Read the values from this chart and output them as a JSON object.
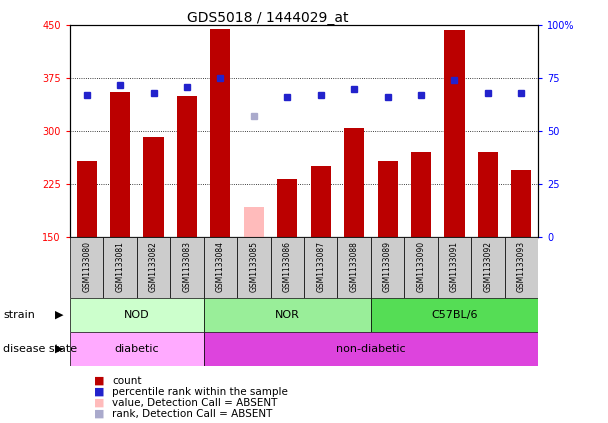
{
  "title": "GDS5018 / 1444029_at",
  "samples": [
    "GSM1133080",
    "GSM1133081",
    "GSM1133082",
    "GSM1133083",
    "GSM1133084",
    "GSM1133085",
    "GSM1133086",
    "GSM1133087",
    "GSM1133088",
    "GSM1133089",
    "GSM1133090",
    "GSM1133091",
    "GSM1133092",
    "GSM1133093"
  ],
  "count_values": [
    258,
    355,
    292,
    350,
    445,
    null,
    232,
    250,
    305,
    258,
    270,
    443,
    270,
    245
  ],
  "count_absent": [
    null,
    null,
    null,
    null,
    null,
    192,
    null,
    null,
    null,
    null,
    null,
    null,
    null,
    null
  ],
  "rank_values": [
    67,
    72,
    68,
    71,
    75,
    null,
    66,
    67,
    70,
    66,
    67,
    74,
    68,
    68
  ],
  "rank_absent": [
    null,
    null,
    null,
    null,
    null,
    57,
    null,
    null,
    null,
    null,
    null,
    null,
    null,
    null
  ],
  "ylim_left": [
    150,
    450
  ],
  "ylim_right": [
    0,
    100
  ],
  "yticks_left": [
    150,
    225,
    300,
    375,
    450
  ],
  "yticks_right": [
    0,
    25,
    50,
    75,
    100
  ],
  "bar_color": "#bb0000",
  "bar_absent_color": "#ffbbbb",
  "dot_color": "#2222cc",
  "dot_absent_color": "#aaaacc",
  "strain_groups": [
    {
      "label": "NOD",
      "start": 0,
      "end": 4,
      "color": "#ccffcc"
    },
    {
      "label": "NOR",
      "start": 4,
      "end": 9,
      "color": "#99ee99"
    },
    {
      "label": "C57BL/6",
      "start": 9,
      "end": 14,
      "color": "#55dd55"
    }
  ],
  "disease_groups": [
    {
      "label": "diabetic",
      "start": 0,
      "end": 4,
      "color": "#ffaaff"
    },
    {
      "label": "non-diabetic",
      "start": 4,
      "end": 14,
      "color": "#dd44dd"
    }
  ],
  "bg_color": "#cccccc",
  "grid_color": "#000000",
  "title_fontsize": 10,
  "tick_fontsize": 7,
  "sample_fontsize": 5.5
}
